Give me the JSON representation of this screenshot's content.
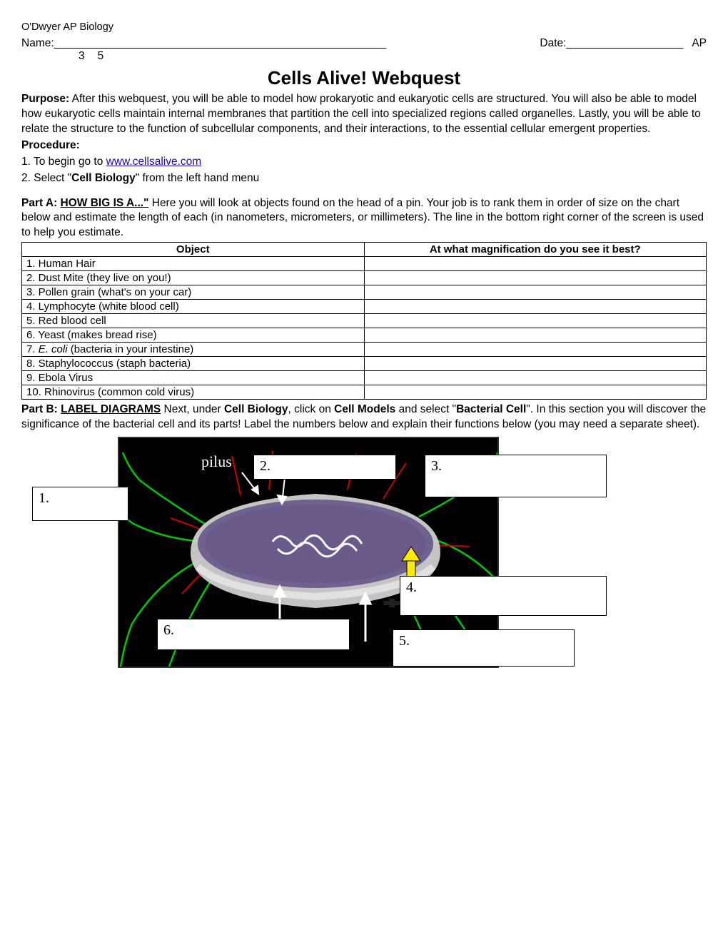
{
  "header": {
    "course": "O'Dwyer AP Biology",
    "name_label": "Name:______________________________________________________",
    "date_label": "Date:___________________",
    "ap": "AP",
    "subnum_a": "3",
    "subnum_b": "5"
  },
  "title": "Cells Alive! Webquest",
  "purpose_label": "Purpose:",
  "purpose_text": " After this webquest, you will be able to model how prokaryotic and eukaryotic cells are structured.  You will also be able to model how eukaryotic cells maintain internal membranes that partition the cell into specialized regions called organelles.  Lastly, you will be able to relate the structure to the function of subcellular components, and their interactions, to the essential cellular emergent properties.",
  "procedure_label": "Procedure:",
  "procedure": {
    "step1_a": "1. To begin go to ",
    "step1_link": "www.cellsalive.com ",
    "step2_a": "2. Select \"",
    "step2_bold": "Cell Biology",
    "step2_b": "\" from the left hand menu"
  },
  "partA": {
    "label": "Part A:  ",
    "heading": "HOW BIG IS A...\"",
    "text": " Here you will look at objects found on the head of a pin. Your job is to rank them in order of size on the chart below and estimate the length of each (in nanometers, micrometers, or millimeters). The line in the bottom right corner of the screen is used to help you estimate."
  },
  "table": {
    "col1": "Object",
    "col2": "At what magnification do you see it best?",
    "rows": [
      {
        "a": "1. Human Hair",
        "ital": ""
      },
      {
        "a": "2. Dust Mite (they live on you!)",
        "ital": ""
      },
      {
        "a": "3. Pollen grain (what's on your car)",
        "ital": ""
      },
      {
        "a": "4. Lymphocyte (white blood cell)",
        "ital": ""
      },
      {
        "a": "5. Red blood cell",
        "ital": ""
      },
      {
        "a": "6. Yeast (makes bread rise)",
        "ital": ""
      },
      {
        "a_pre": "7. ",
        "ital": "E. coli",
        "a_post": " (bacteria in your intestine)"
      },
      {
        "a": "8. Staphylococcus (staph bacteria)",
        "ital": ""
      },
      {
        "a": "9. Ebola Virus",
        "ital": ""
      },
      {
        "a": "10. Rhinovirus (common cold virus)",
        "ital": ""
      }
    ]
  },
  "partB": {
    "label": "Part B:  ",
    "heading": "LABEL DIAGRAMS",
    "t1": "  Next, under ",
    "b1": "Cell Biology",
    "t2": ", click on ",
    "b2": "Cell Models",
    "t3": "  and select \"",
    "b3": "Bacterial Cell",
    "t4": "\". In this section you will discover the significance of the bacterial cell and its parts! Label the numbers below and explain their functions below (you may need a separate sheet)."
  },
  "diagram": {
    "pilus_label": "pilus",
    "labels": {
      "l1": "1.",
      "l2": "2.",
      "l3": "3.",
      "l4": "4.",
      "l5": "5.",
      "l6": "6."
    },
    "colors": {
      "bg": "#000000",
      "cell_body": "#9a8fb5",
      "cell_inner": "#5a4a7a",
      "capsule": "#cfcfcf",
      "flagella": "#00c800",
      "pili": "#cc0000",
      "nucleoid": "#ffffff",
      "arrow_yellow": "#ffeb00"
    }
  }
}
